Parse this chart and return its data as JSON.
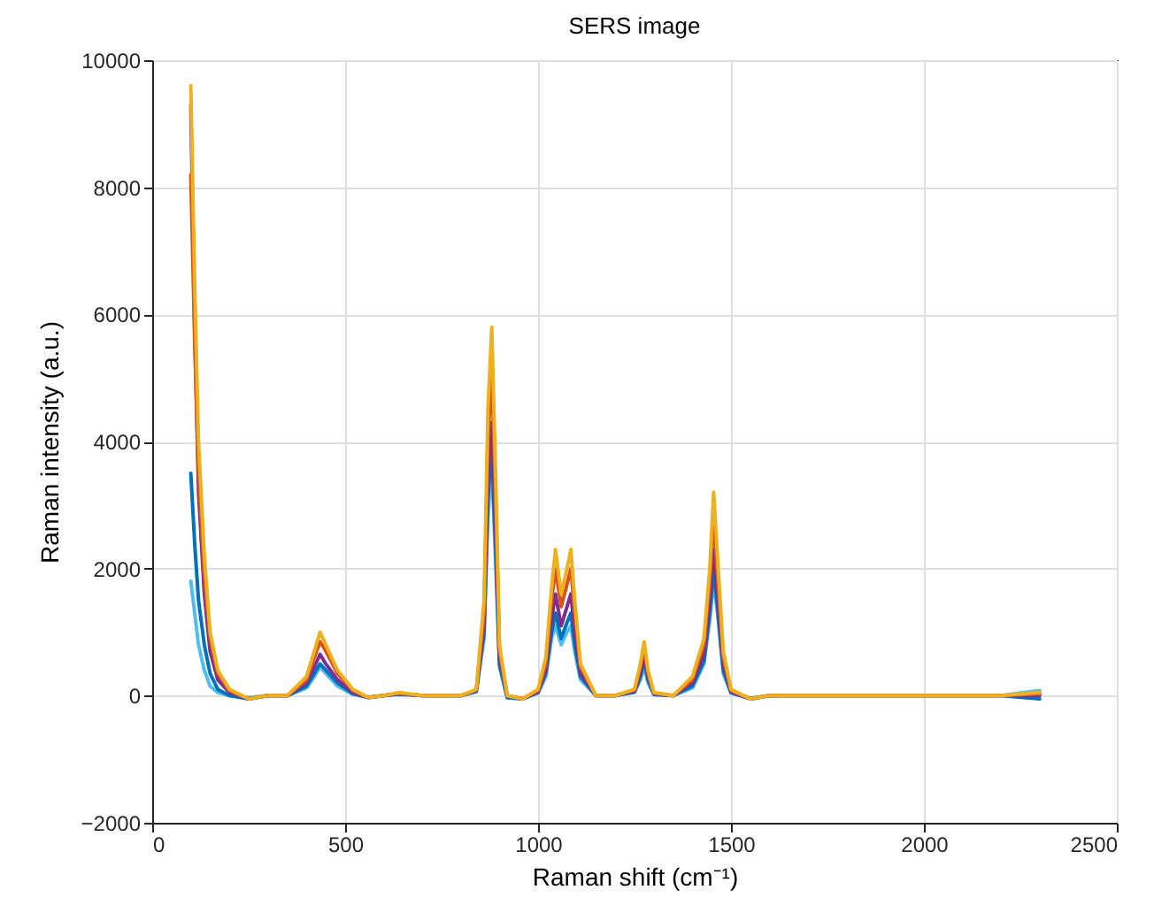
{
  "chart_data": {
    "type": "line",
    "title": "SERS image",
    "xlabel": "Raman shift (cm⁻¹)",
    "ylabel": "Raman intensity (a.u.)",
    "x": [
      100,
      110,
      120,
      135,
      150,
      170,
      200,
      250,
      300,
      350,
      400,
      420,
      435,
      450,
      480,
      520,
      560,
      600,
      640,
      700,
      750,
      800,
      840,
      860,
      870,
      880,
      890,
      900,
      920,
      960,
      1000,
      1020,
      1035,
      1045,
      1060,
      1075,
      1085,
      1095,
      1110,
      1150,
      1200,
      1250,
      1265,
      1275,
      1285,
      1300,
      1350,
      1400,
      1430,
      1445,
      1455,
      1465,
      1480,
      1500,
      1550,
      1600,
      1700,
      1800,
      1900,
      2000,
      2100,
      2200,
      2300
    ],
    "series": [
      {
        "color": "#4dbeee",
        "values": [
          1800,
          1300,
          800,
          400,
          150,
          50,
          0,
          -30,
          0,
          0,
          120,
          300,
          450,
          350,
          150,
          20,
          -20,
          0,
          20,
          0,
          0,
          0,
          60,
          900,
          2800,
          3600,
          2100,
          450,
          -30,
          -50,
          40,
          300,
          900,
          1100,
          800,
          1000,
          1100,
          700,
          250,
          0,
          0,
          50,
          250,
          450,
          200,
          20,
          0,
          120,
          500,
          1200,
          1800,
          1300,
          350,
          40,
          -40,
          0,
          0,
          0,
          0,
          0,
          0,
          0,
          80
        ]
      },
      {
        "color": "#0072bd",
        "values": [
          3500,
          2400,
          1500,
          800,
          350,
          100,
          0,
          -50,
          0,
          0,
          150,
          350,
          500,
          400,
          200,
          30,
          -30,
          0,
          30,
          0,
          0,
          0,
          70,
          1000,
          3100,
          3900,
          2300,
          500,
          -30,
          -50,
          50,
          350,
          1000,
          1300,
          900,
          1150,
          1300,
          800,
          300,
          0,
          0,
          60,
          300,
          550,
          250,
          20,
          0,
          150,
          550,
          1300,
          2000,
          1400,
          400,
          50,
          -50,
          0,
          0,
          0,
          0,
          0,
          0,
          0,
          -50
        ]
      },
      {
        "color": "#7e2f8e",
        "values": [
          9300,
          5800,
          3200,
          1600,
          700,
          250,
          50,
          -50,
          0,
          0,
          200,
          450,
          650,
          500,
          250,
          50,
          -30,
          0,
          30,
          0,
          0,
          0,
          80,
          1100,
          3400,
          4300,
          2600,
          600,
          0,
          -50,
          60,
          400,
          1200,
          1600,
          1100,
          1400,
          1600,
          1000,
          350,
          0,
          0,
          70,
          350,
          650,
          300,
          30,
          0,
          200,
          650,
          1500,
          2300,
          1600,
          500,
          60,
          -50,
          0,
          0,
          0,
          0,
          0,
          0,
          0,
          0
        ]
      },
      {
        "color": "#d95319",
        "values": [
          8200,
          5600,
          3500,
          1900,
          900,
          350,
          80,
          -50,
          0,
          0,
          250,
          600,
          850,
          700,
          350,
          80,
          -30,
          0,
          40,
          0,
          0,
          0,
          90,
          1300,
          4000,
          5100,
          3100,
          700,
          0,
          -50,
          80,
          500,
          1500,
          2000,
          1400,
          1750,
          2000,
          1300,
          450,
          0,
          0,
          90,
          450,
          750,
          350,
          40,
          0,
          250,
          800,
          1800,
          2800,
          1900,
          600,
          80,
          -50,
          0,
          0,
          0,
          0,
          0,
          0,
          0,
          30
        ]
      },
      {
        "color": "#edb120",
        "values": [
          9600,
          6500,
          4000,
          2200,
          1000,
          400,
          100,
          -50,
          0,
          0,
          300,
          700,
          1000,
          800,
          400,
          100,
          -30,
          0,
          50,
          0,
          0,
          0,
          100,
          1500,
          4500,
          5800,
          3500,
          800,
          0,
          -50,
          100,
          600,
          1700,
          2300,
          1600,
          2000,
          2300,
          1500,
          500,
          0,
          0,
          100,
          500,
          850,
          400,
          50,
          0,
          300,
          900,
          2000,
          3200,
          2200,
          700,
          100,
          -50,
          0,
          0,
          0,
          0,
          0,
          0,
          0,
          50
        ]
      }
    ],
    "xlim": [
      0,
      2500
    ],
    "xticks": [
      0,
      500,
      1000,
      1500,
      2000,
      2500
    ],
    "ylim": [
      -2000,
      10000
    ],
    "yticks": [
      -2000,
      0,
      2000,
      4000,
      6000,
      8000,
      10000
    ],
    "grid": true,
    "line_style": "solid",
    "marker": "none"
  }
}
